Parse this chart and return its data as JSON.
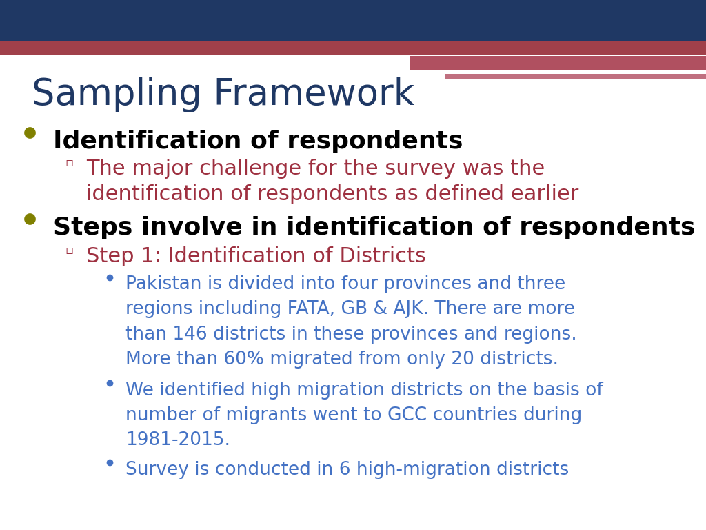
{
  "title": "Sampling Framework",
  "title_color": "#1F3864",
  "title_fontsize": 38,
  "background_color": "#FFFFFF",
  "header_bar_color": "#1F3864",
  "accent_bar_color1": "#A0404A",
  "accent_bar_color2": "#B05060",
  "accent_bar_color3": "#C07080",
  "bullet_color": "#808000",
  "bullet1_text": "Identification of respondents",
  "bullet1_color": "#000000",
  "bullet1_fontsize": 26,
  "sub_bullet1_line1": "The major challenge for the survey was the",
  "sub_bullet1_line2": "identification of respondents as defined earlier",
  "sub_bullet1_color": "#9E3040",
  "sub_bullet1_fontsize": 22,
  "bullet2_text": "Steps involve in identification of respondents",
  "bullet2_color": "#000000",
  "bullet2_fontsize": 26,
  "sub_bullet2_text": "Step 1: Identification of Districts",
  "sub_bullet2_color": "#9E3040",
  "sub_bullet2_fontsize": 22,
  "sub_sub_color": "#4472C4",
  "sub_sub_fontsize": 19,
  "ss1_line1": "Pakistan is divided into four provinces and three",
  "ss1_line2": "regions including FATA, GB & AJK. There are more",
  "ss1_line3": "than 146 districts in these provinces and regions.",
  "ss1_line4": "More than 60% migrated from only 20 districts.",
  "ss2_line1": "We identified high migration districts on the basis of",
  "ss2_line2": "number of migrants went to GCC countries during",
  "ss2_line3": "1981-2015.",
  "ss3_line1": "Survey is conducted in 6 high-migration districts"
}
